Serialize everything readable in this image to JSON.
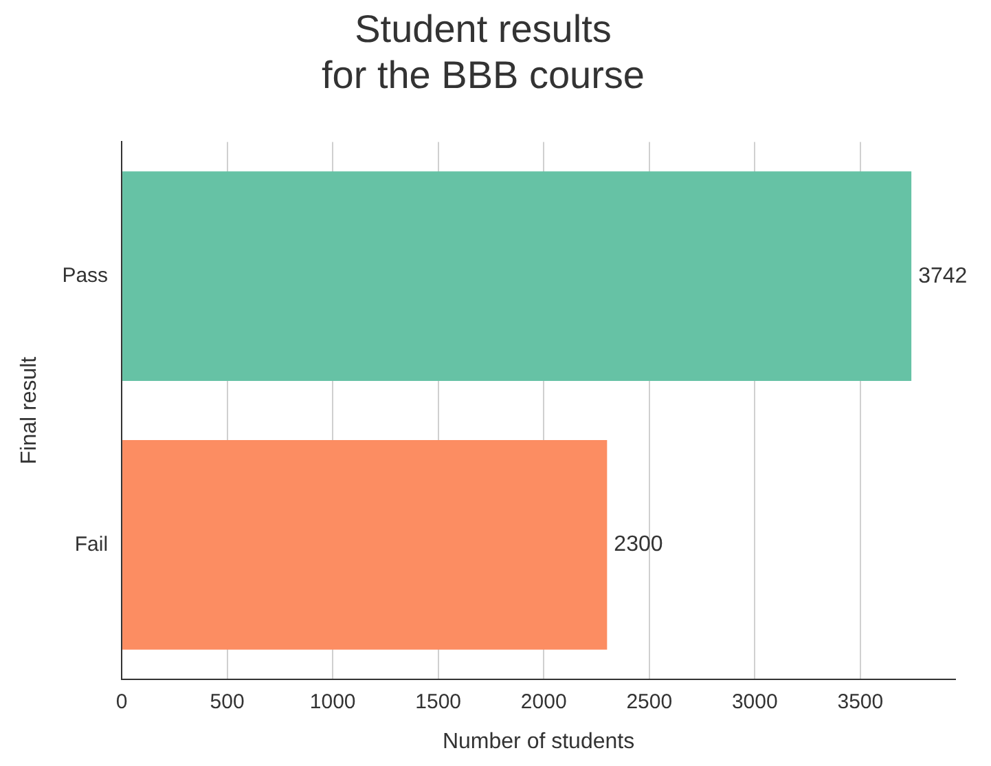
{
  "chart_data": {
    "type": "bar",
    "orientation": "horizontal",
    "title": "Student results\nfor the BBB course",
    "xlabel": "Number of students",
    "ylabel": "Final result",
    "categories": [
      "Pass",
      "Fail"
    ],
    "values": [
      3742,
      2300
    ],
    "colors": [
      "#66c2a5",
      "#fc8d62"
    ],
    "xlim": [
      0,
      3950
    ],
    "xticks": [
      0,
      500,
      1000,
      1500,
      2000,
      2500,
      3000,
      3500
    ],
    "grid": "x",
    "data_labels": true
  }
}
